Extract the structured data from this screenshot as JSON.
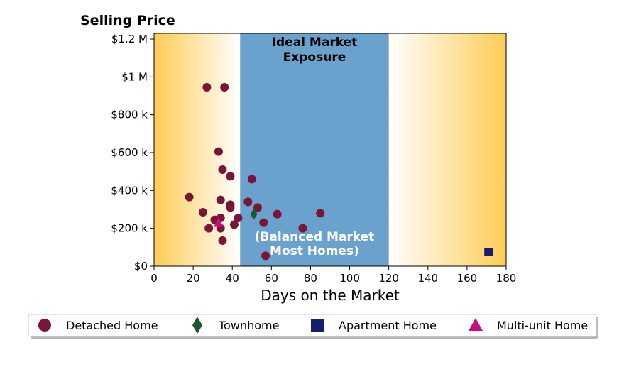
{
  "chart_data": {
    "type": "scatter",
    "title": "Selling Price",
    "xlabel": "Days on the Market",
    "ylabel": "",
    "xlim": [
      0,
      180
    ],
    "ylim": [
      0,
      1230000
    ],
    "x_ticks": [
      0,
      20,
      40,
      60,
      80,
      100,
      120,
      140,
      160,
      180
    ],
    "x_tick_labels": [
      "0",
      "20",
      "40",
      "60",
      "80",
      "100",
      "120",
      "140",
      "160",
      "180"
    ],
    "y_ticks": [
      0,
      200000,
      400000,
      600000,
      800000,
      1000000,
      1200000
    ],
    "y_tick_labels": [
      "$0",
      "$200 k",
      "$400 k",
      "$600 k",
      "$800 k",
      "$1 M",
      "$1.2 M"
    ],
    "grid": false,
    "legend_position": "bottom",
    "background_gradient": {
      "edge_color": "#FFCC55",
      "center_color": "#FFFFFF"
    },
    "ideal_band": {
      "x_range": [
        44,
        120
      ],
      "color": "#6AA1CD",
      "label_top": "Ideal Market\nExposure",
      "label_bottom": "(Balanced Market\nMost Homes)"
    },
    "series": [
      {
        "name": "Detached Home",
        "marker": "circle",
        "color": "#7B1538",
        "points": [
          [
            27,
            945000
          ],
          [
            36,
            945000
          ],
          [
            33,
            605000
          ],
          [
            35,
            510000
          ],
          [
            39,
            475000
          ],
          [
            50,
            460000
          ],
          [
            18,
            365000
          ],
          [
            34,
            350000
          ],
          [
            39,
            325000
          ],
          [
            48,
            340000
          ],
          [
            39,
            310000
          ],
          [
            53,
            310000
          ],
          [
            25,
            285000
          ],
          [
            63,
            275000
          ],
          [
            85,
            280000
          ],
          [
            43,
            255000
          ],
          [
            34,
            255000
          ],
          [
            31,
            245000
          ],
          [
            56,
            230000
          ],
          [
            41,
            220000
          ],
          [
            28,
            200000
          ],
          [
            34,
            200000
          ],
          [
            76,
            200000
          ],
          [
            35,
            135000
          ],
          [
            57,
            55000
          ]
        ]
      },
      {
        "name": "Townhome",
        "marker": "diamond",
        "color": "#1E5631",
        "points": [
          [
            51,
            275000
          ]
        ]
      },
      {
        "name": "Apartment Home",
        "marker": "square",
        "color": "#14206E",
        "points": [
          [
            171,
            75000
          ]
        ]
      },
      {
        "name": "Multi-unit Home",
        "marker": "triangle",
        "color": "#C8107C",
        "points": [
          [
            33,
            230000
          ]
        ]
      }
    ]
  }
}
